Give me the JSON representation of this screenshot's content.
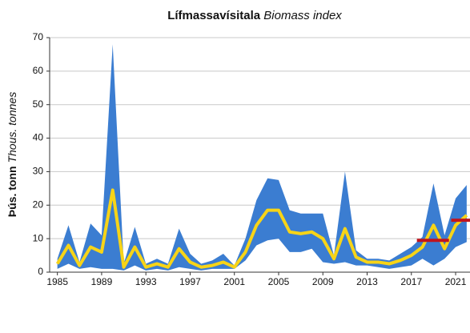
{
  "chart_data": {
    "type": "band-line",
    "title": {
      "main": "Lífmassavísitala",
      "sub": "Biomass index"
    },
    "ylabel": {
      "main": "Þús. tonn",
      "sub": "Thous. tonnes"
    },
    "x": [
      1985,
      1986,
      1987,
      1988,
      1989,
      1990,
      1991,
      1992,
      1993,
      1994,
      1995,
      1996,
      1997,
      1998,
      1999,
      2000,
      2001,
      2002,
      2003,
      2004,
      2005,
      2006,
      2007,
      2008,
      2009,
      2010,
      2011,
      2012,
      2013,
      2014,
      2015,
      2016,
      2017,
      2018,
      2019,
      2020,
      2021,
      2022
    ],
    "series": [
      {
        "color": "#f7d417",
        "values": [
          2.5,
          8,
          2,
          7.5,
          6,
          24.5,
          1.5,
          7.5,
          1.5,
          2.5,
          1.5,
          7,
          3,
          1.5,
          2,
          3,
          1.5,
          6,
          14,
          18.5,
          18.5,
          12,
          11.5,
          12,
          10,
          4,
          13,
          4.5,
          3,
          3,
          2.5,
          3.5,
          5,
          7.5,
          14,
          7,
          14,
          17
        ]
      }
    ],
    "band": {
      "color": "#3b7dd1",
      "upper": [
        4,
        14,
        3,
        14.5,
        11,
        68,
        2.5,
        13.5,
        2.5,
        4,
        2.5,
        13,
        5.5,
        2.5,
        3.5,
        5.5,
        2,
        10,
        21.5,
        28,
        27.5,
        18.5,
        17.5,
        17.5,
        17.5,
        5,
        30,
        6.5,
        4,
        4,
        3.5,
        5.5,
        7.5,
        10.5,
        26.5,
        11,
        22,
        26
      ],
      "lower": [
        1,
        2.5,
        1,
        1.5,
        1,
        1,
        0.5,
        2,
        0.5,
        1,
        0.5,
        1.5,
        1,
        0.5,
        1,
        1,
        1,
        3.5,
        8,
        9.5,
        10,
        6,
        6,
        7,
        3,
        2.5,
        3,
        2,
        2,
        1.5,
        1,
        1.5,
        2,
        4,
        2,
        4,
        7.5,
        9
      ]
    },
    "segments": {
      "color": "#c0141e",
      "items": [
        {
          "x0": 2017.5,
          "x1": 2020.4,
          "value": 9.5
        },
        {
          "x0": 2020.6,
          "x1": 2022.3,
          "value": 15.5
        }
      ]
    },
    "xlim": [
      1984.3,
      2022.3
    ],
    "xticks": [
      1985,
      1989,
      1993,
      1997,
      2001,
      2005,
      2009,
      2013,
      2017,
      2021
    ],
    "ylim": [
      0,
      70
    ],
    "yticks": [
      0,
      10,
      20,
      30,
      40,
      50,
      60,
      70
    ],
    "grid": true
  }
}
